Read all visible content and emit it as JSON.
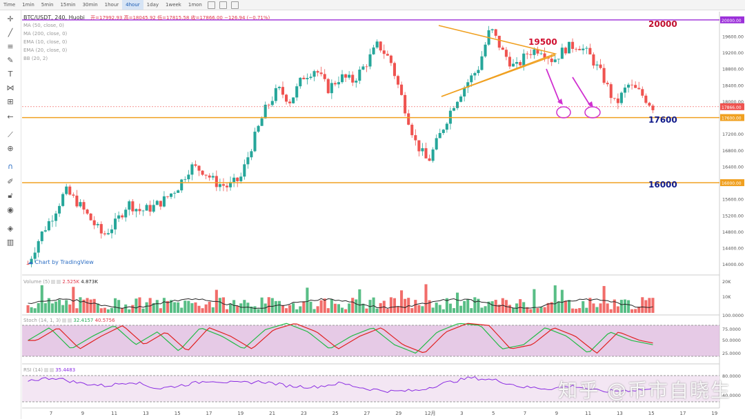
{
  "toolbar": {
    "timeframes": [
      "Time",
      "1min",
      "5min",
      "15min",
      "30min",
      "1hour",
      "4hour",
      "1day",
      "1week",
      "1mon"
    ],
    "active": "4hour"
  },
  "legend": {
    "main_title": "BTC/USDT, 240, Huobi",
    "ohlc": "开=17992.93 高=18045.92 低=17815.58 收=17866.00 −126.94 (−0.71%)",
    "ma_lines": [
      "MA (50, close, 0)",
      "MA (200, close, 0)",
      "EMA (10, close, 0)",
      "EMA (20, close, 0)",
      "BB (20, 2)"
    ]
  },
  "annotations": {
    "label_20000": "20000",
    "label_19500": "19500",
    "label_17600": "17600",
    "label_16000": "16000"
  },
  "tv_logo": "Chart by TradingView",
  "watermark": "知乎 @币市自晓生",
  "volume_legend": {
    "name": "Volume (5)",
    "v1": "2.525K",
    "v2": "4.873K"
  },
  "stoch_legend": {
    "name": "Stoch (14, 1, 3)",
    "k": "32.4157",
    "d": "40.5756"
  },
  "rsi_legend": {
    "name": "RSI (14)",
    "v": "35.4483"
  },
  "price_axis": [
    "20000.00",
    "19600.00",
    "19200.00",
    "18800.00",
    "18400.00",
    "18000.00",
    "17600.00",
    "17200.00",
    "16800.00",
    "16400.00",
    "16000.00",
    "15600.00",
    "15200.00",
    "14800.00",
    "14400.00",
    "14000.00"
  ],
  "current_price": "17866.00",
  "vol_axis": [
    "20K",
    "10K"
  ],
  "stoch_axis": [
    "100.0000",
    "75.0000",
    "50.0000",
    "25.0000"
  ],
  "rsi_axis": [
    "80.0000",
    "40.0000"
  ],
  "date_axis": [
    "7",
    "9",
    "11",
    "13",
    "15",
    "17",
    "19",
    "21",
    "23",
    "25",
    "27",
    "29",
    "12月",
    "3",
    "5",
    "7",
    "9",
    "11",
    "13",
    "15",
    "17",
    "19"
  ],
  "chart_data": {
    "type": "candlestick",
    "pair": "BTC/USDT",
    "interval": "4h",
    "ylim": [
      13800,
      20200
    ],
    "levels": [
      20000,
      17600,
      16000
    ],
    "close_path": [
      14000,
      14700,
      15200,
      15800,
      15500,
      15100,
      14700,
      15000,
      15500,
      15300,
      15400,
      15600,
      15900,
      16400,
      16300,
      16000,
      15900,
      16100,
      17000,
      17800,
      18300,
      18000,
      18600,
      18800,
      18300,
      18600,
      18500,
      18900,
      19400,
      19000,
      18000,
      17000,
      16500,
      17200,
      17900,
      18400,
      18800,
      19800,
      19200,
      18800,
      19200,
      19300,
      19000,
      19300,
      19400,
      19100,
      18600,
      17900,
      18400,
      18200,
      17866
    ],
    "stoch": [
      50,
      80,
      30,
      60,
      85,
      40,
      70,
      25,
      80,
      60,
      30,
      75,
      90,
      70,
      30,
      60,
      80,
      40,
      20,
      70,
      90,
      85,
      30,
      40,
      80,
      60,
      20,
      70,
      50,
      40
    ],
    "rsi": [
      60,
      65,
      55,
      50,
      58,
      45,
      52,
      60,
      55,
      58,
      50,
      48,
      55,
      45,
      40,
      42,
      55,
      65,
      60,
      48,
      45,
      50,
      40,
      42,
      44
    ]
  }
}
